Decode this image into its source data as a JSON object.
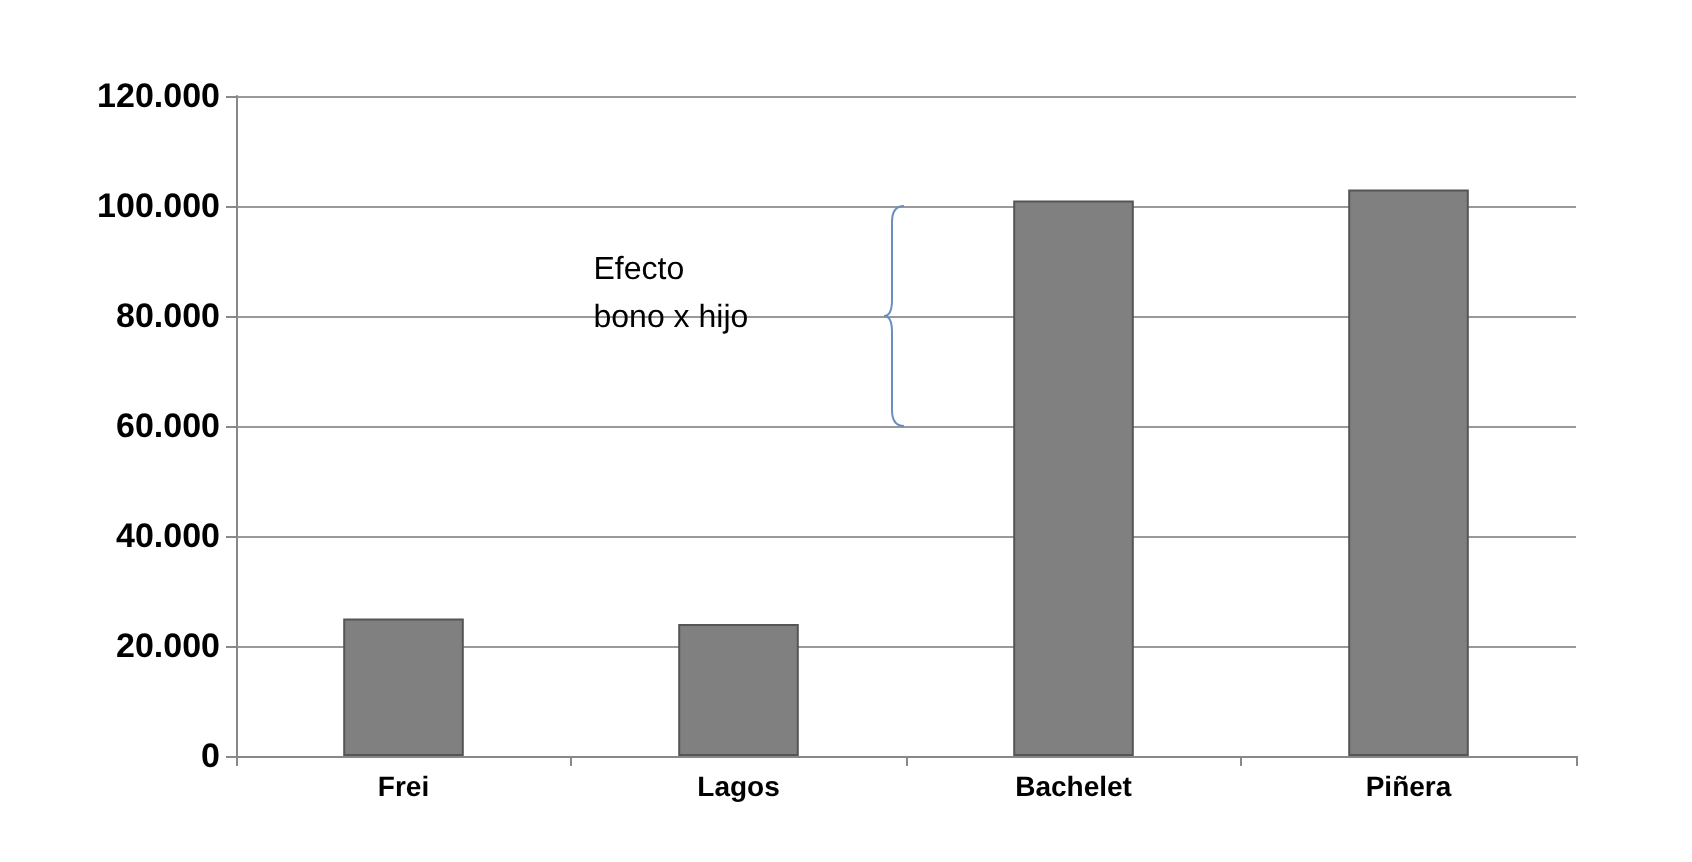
{
  "chart_data": {
    "type": "bar",
    "categories": [
      "Frei",
      "Lagos",
      "Bachelet",
      "Piñera"
    ],
    "values": [
      25000,
      24000,
      101000,
      103000
    ],
    "color": "#808080",
    "ylim": [
      0,
      120000
    ],
    "yticks": [
      {
        "value": 0,
        "label": "0"
      },
      {
        "value": 20000,
        "label": "20.000"
      },
      {
        "value": 40000,
        "label": "40.000"
      },
      {
        "value": 60000,
        "label": "60.000"
      },
      {
        "value": 80000,
        "label": "80.000"
      },
      {
        "value": 100000,
        "label": "100.000"
      },
      {
        "value": 120000,
        "label": "120.000"
      }
    ],
    "grid": "y",
    "annotations": [
      "Efecto\nbono x hijo"
    ]
  }
}
